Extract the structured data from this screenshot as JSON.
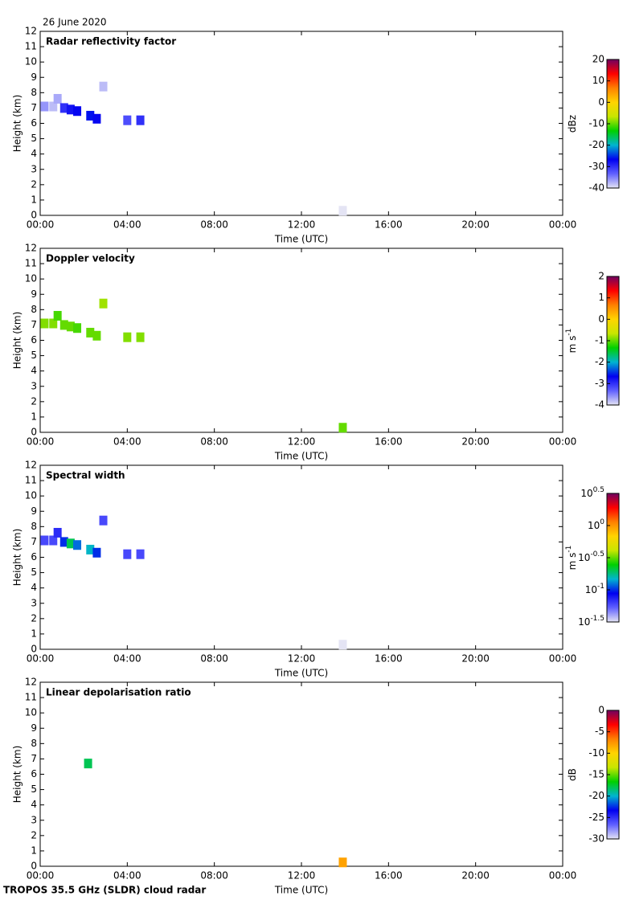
{
  "header_date": "26 June 2020",
  "footer": "TROPOS 35.5 GHz (SLDR) cloud radar",
  "chart_data": [
    {
      "type": "heatmap",
      "title": "Radar reflectivity factor",
      "xlabel": "Time (UTC)",
      "ylabel": "Height (km)",
      "xlim": [
        0,
        24
      ],
      "xticks": [
        {
          "value": 0,
          "label": "00:00"
        },
        {
          "value": 4,
          "label": "04:00"
        },
        {
          "value": 8,
          "label": "08:00"
        },
        {
          "value": 12,
          "label": "12:00"
        },
        {
          "value": 16,
          "label": "16:00"
        },
        {
          "value": 20,
          "label": "20:00"
        },
        {
          "value": 24,
          "label": "00:00"
        }
      ],
      "ylim": [
        0,
        12
      ],
      "yticks": [
        0,
        1,
        2,
        3,
        4,
        5,
        6,
        7,
        8,
        9,
        10,
        11,
        12
      ],
      "x": [
        0.2,
        0.6,
        0.8,
        1.1,
        1.4,
        1.7,
        2.3,
        2.6,
        2.9,
        4.0,
        4.6,
        13.9
      ],
      "y": [
        7.1,
        7.1,
        7.6,
        7.0,
        6.9,
        6.8,
        6.5,
        6.3,
        8.4,
        6.2,
        6.2,
        0.3
      ],
      "values": [
        -36,
        -38,
        -37,
        -30,
        -28,
        -27,
        -26,
        -27,
        -38,
        -32,
        -30,
        -40
      ],
      "clim": [
        -40,
        20
      ],
      "cticks": [
        20,
        10,
        0,
        -10,
        -20,
        -30,
        -40
      ],
      "clabel": "dBz",
      "colormap": [
        "#e4e4f4",
        "#6060ff",
        "#0000f0",
        "#00b4d0",
        "#00d000",
        "#c8e600",
        "#ffd400",
        "#ff8000",
        "#ff0000",
        "#700060"
      ]
    },
    {
      "type": "heatmap",
      "title": "Doppler velocity",
      "xlabel": "Time (UTC)",
      "ylabel": "Height (km)",
      "xlim": [
        0,
        24
      ],
      "xticks": [
        {
          "value": 0,
          "label": "00:00"
        },
        {
          "value": 4,
          "label": "04:00"
        },
        {
          "value": 8,
          "label": "08:00"
        },
        {
          "value": 12,
          "label": "12:00"
        },
        {
          "value": 16,
          "label": "16:00"
        },
        {
          "value": 20,
          "label": "20:00"
        },
        {
          "value": 24,
          "label": "00:00"
        }
      ],
      "ylim": [
        0,
        12
      ],
      "yticks": [
        0,
        1,
        2,
        3,
        4,
        5,
        6,
        7,
        8,
        9,
        10,
        11,
        12
      ],
      "x": [
        0.2,
        0.6,
        0.8,
        1.1,
        1.4,
        1.7,
        2.3,
        2.6,
        2.9,
        4.0,
        4.6,
        13.9
      ],
      "y": [
        7.1,
        7.1,
        7.6,
        7.0,
        6.9,
        6.8,
        6.5,
        6.3,
        8.4,
        6.2,
        6.2,
        0.3
      ],
      "values": [
        -0.9,
        -0.9,
        -1.1,
        -1.0,
        -1.0,
        -1.1,
        -1.0,
        -1.0,
        -0.8,
        -0.9,
        -0.9,
        -1.0
      ],
      "clim": [
        -4,
        2
      ],
      "cticks": [
        2,
        1,
        0,
        -1,
        -2,
        -3,
        -4
      ],
      "clabel": "m s",
      "clabel_exponent": "-1",
      "colormap": [
        "#e4e4f4",
        "#6060ff",
        "#0000f0",
        "#00b4d0",
        "#00d000",
        "#c8e600",
        "#ffd400",
        "#ff8000",
        "#ff0000",
        "#700060"
      ]
    },
    {
      "type": "heatmap",
      "title": "Spectral width",
      "xlabel": "Time (UTC)",
      "ylabel": "Height (km)",
      "xlim": [
        0,
        24
      ],
      "xticks": [
        {
          "value": 0,
          "label": "00:00"
        },
        {
          "value": 4,
          "label": "04:00"
        },
        {
          "value": 8,
          "label": "08:00"
        },
        {
          "value": 12,
          "label": "12:00"
        },
        {
          "value": 16,
          "label": "16:00"
        },
        {
          "value": 20,
          "label": "20:00"
        },
        {
          "value": 24,
          "label": "00:00"
        }
      ],
      "ylim": [
        0,
        12
      ],
      "yticks": [
        0,
        1,
        2,
        3,
        4,
        5,
        6,
        7,
        8,
        9,
        10,
        11,
        12
      ],
      "x": [
        0.2,
        0.6,
        0.8,
        1.1,
        1.4,
        1.7,
        2.3,
        2.6,
        2.9,
        4.0,
        4.6,
        13.9
      ],
      "y": [
        7.1,
        7.1,
        7.6,
        7.0,
        6.9,
        6.8,
        6.5,
        6.3,
        8.4,
        6.2,
        6.2,
        0.3
      ],
      "values": [
        0.06,
        0.06,
        0.07,
        0.1,
        0.2,
        0.12,
        0.15,
        0.1,
        0.06,
        0.06,
        0.06,
        0.03
      ],
      "log": true,
      "clim": [
        0.0316228,
        3.16228
      ],
      "cticks": [
        {
          "value": 3.16228,
          "label": "10",
          "exponent": "0.5"
        },
        {
          "value": 1,
          "label": "10",
          "exponent": "0"
        },
        {
          "value": 0.316228,
          "label": "10",
          "exponent": "-0.5"
        },
        {
          "value": 0.1,
          "label": "10",
          "exponent": "-1"
        },
        {
          "value": 0.0316228,
          "label": "10",
          "exponent": "-1.5"
        }
      ],
      "clabel": "m s",
      "clabel_exponent": "-1",
      "colormap": [
        "#e4e4f4",
        "#6060ff",
        "#0000f0",
        "#00b4d0",
        "#00d000",
        "#c8e600",
        "#ffd400",
        "#ff8000",
        "#ff0000",
        "#700060"
      ]
    },
    {
      "type": "heatmap",
      "title": "Linear depolarisation ratio",
      "xlabel": "Time (UTC)",
      "ylabel": "Height (km)",
      "xlim": [
        0,
        24
      ],
      "xticks": [
        {
          "value": 0,
          "label": "00:00"
        },
        {
          "value": 4,
          "label": "04:00"
        },
        {
          "value": 8,
          "label": "08:00"
        },
        {
          "value": 12,
          "label": "12:00"
        },
        {
          "value": 16,
          "label": "16:00"
        },
        {
          "value": 20,
          "label": "20:00"
        },
        {
          "value": 24,
          "label": "00:00"
        }
      ],
      "ylim": [
        0,
        12
      ],
      "yticks": [
        0,
        1,
        2,
        3,
        4,
        5,
        6,
        7,
        8,
        9,
        10,
        11,
        12
      ],
      "x": [
        2.2,
        13.9
      ],
      "y": [
        6.7,
        0.25
      ],
      "values": [
        -18,
        -8
      ],
      "clim": [
        -30,
        0
      ],
      "cticks": [
        0,
        -5,
        -10,
        -15,
        -20,
        -25,
        -30
      ],
      "clabel": "dB",
      "colormap": [
        "#e4e4f4",
        "#6060ff",
        "#0000f0",
        "#00b4d0",
        "#00d000",
        "#c8e600",
        "#ffd400",
        "#ff8000",
        "#ff0000",
        "#700060"
      ]
    }
  ]
}
